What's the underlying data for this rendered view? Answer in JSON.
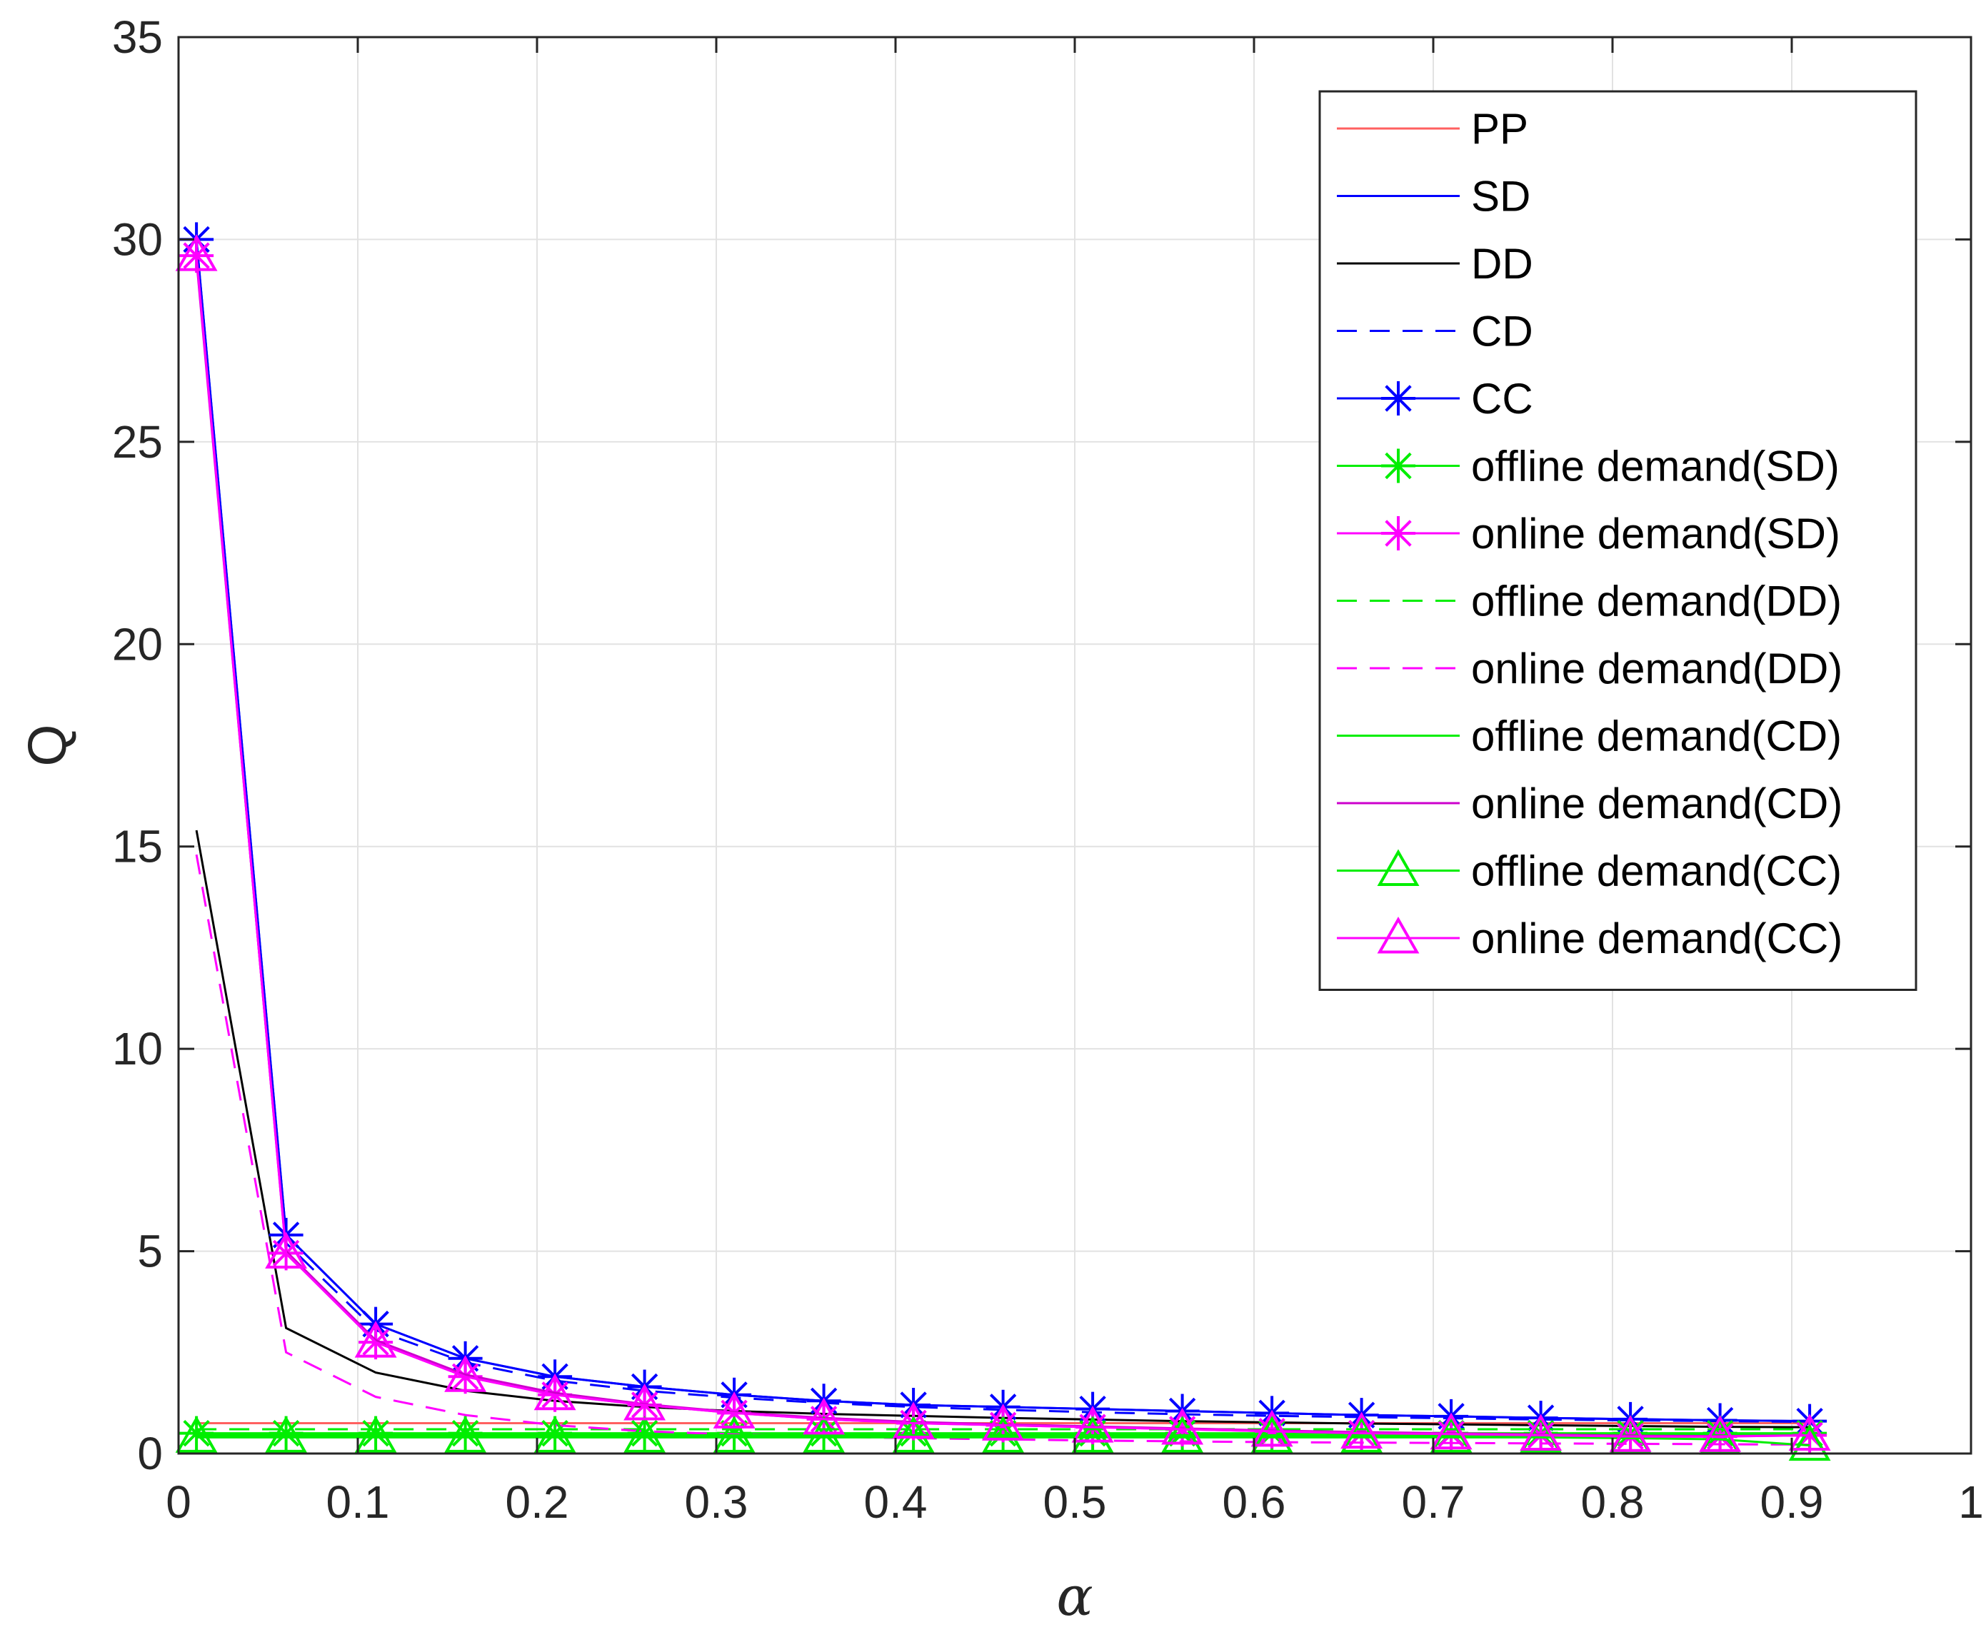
{
  "chart_data": {
    "type": "line",
    "title": "",
    "xlabel": "α",
    "ylabel": "Q",
    "xlim": [
      0,
      1
    ],
    "ylim": [
      0,
      35
    ],
    "xticks": [
      0,
      0.1,
      0.2,
      0.3,
      0.4,
      0.5,
      0.6,
      0.7,
      0.8,
      0.9,
      1
    ],
    "xtick_labels": [
      "0",
      "0.1",
      "0.2",
      "0.3",
      "0.4",
      "0.5",
      "0.6",
      "0.7",
      "0.8",
      "0.9",
      "1"
    ],
    "yticks": [
      0,
      5,
      10,
      15,
      20,
      25,
      30,
      35
    ],
    "ytick_labels": [
      "0",
      "5",
      "10",
      "15",
      "20",
      "25",
      "30",
      "35"
    ],
    "grid": true,
    "legend_position": "top-right",
    "x": [
      0.01,
      0.06,
      0.11,
      0.16,
      0.21,
      0.26,
      0.31,
      0.36,
      0.41,
      0.46,
      0.51,
      0.56,
      0.61,
      0.66,
      0.71,
      0.76,
      0.81,
      0.86,
      0.91
    ],
    "series": [
      {
        "name": "PP",
        "color": "#ff6060",
        "dash": "solid",
        "marker": "none",
        "values": [
          0.75,
          0.75,
          0.75,
          0.75,
          0.75,
          0.75,
          0.75,
          0.75,
          0.75,
          0.75,
          0.75,
          0.75,
          0.75,
          0.75,
          0.75,
          0.75,
          0.75,
          0.75,
          0.75
        ]
      },
      {
        "name": "SD",
        "color": "#0000ff",
        "dash": "solid",
        "marker": "none",
        "values": [
          30.0,
          5.4,
          3.2,
          2.35,
          1.9,
          1.65,
          1.45,
          1.3,
          1.2,
          1.15,
          1.1,
          1.05,
          1.0,
          0.95,
          0.92,
          0.88,
          0.85,
          0.82,
          0.8
        ]
      },
      {
        "name": "DD",
        "color": "#000000",
        "dash": "solid",
        "marker": "none",
        "values": [
          15.4,
          3.1,
          2.0,
          1.55,
          1.3,
          1.15,
          1.05,
          0.98,
          0.93,
          0.88,
          0.84,
          0.8,
          0.77,
          0.74,
          0.72,
          0.7,
          0.68,
          0.66,
          0.65
        ]
      },
      {
        "name": "CD",
        "color": "#0000ff",
        "dash": "dash",
        "marker": "none",
        "values": [
          29.8,
          5.2,
          3.05,
          2.25,
          1.8,
          1.55,
          1.38,
          1.25,
          1.15,
          1.08,
          1.02,
          0.97,
          0.93,
          0.9,
          0.87,
          0.84,
          0.82,
          0.8,
          0.78
        ]
      },
      {
        "name": "CC",
        "color": "#0000ff",
        "dash": "solid",
        "marker": "asterisk",
        "values": [
          30.0,
          5.4,
          3.2,
          2.35,
          1.9,
          1.65,
          1.45,
          1.3,
          1.2,
          1.15,
          1.1,
          1.05,
          1.0,
          0.95,
          0.92,
          0.88,
          0.85,
          0.82,
          0.8
        ]
      },
      {
        "name": "offline demand(SD)",
        "color": "#00ee00",
        "dash": "solid",
        "marker": "asterisk",
        "values": [
          0.5,
          0.5,
          0.5,
          0.5,
          0.5,
          0.5,
          0.5,
          0.5,
          0.5,
          0.5,
          0.5,
          0.5,
          0.5,
          0.5,
          0.5,
          0.5,
          0.5,
          0.5,
          0.5
        ]
      },
      {
        "name": "online demand(SD)",
        "color": "#ff00ff",
        "dash": "solid",
        "marker": "asterisk",
        "values": [
          29.6,
          4.95,
          2.75,
          1.9,
          1.45,
          1.2,
          1.0,
          0.85,
          0.75,
          0.7,
          0.65,
          0.6,
          0.55,
          0.5,
          0.48,
          0.45,
          0.42,
          0.42,
          0.45
        ]
      },
      {
        "name": "offline demand(DD)",
        "color": "#00ee00",
        "dash": "dash",
        "marker": "none",
        "values": [
          0.6,
          0.6,
          0.6,
          0.6,
          0.6,
          0.6,
          0.6,
          0.6,
          0.6,
          0.6,
          0.6,
          0.6,
          0.6,
          0.6,
          0.6,
          0.6,
          0.6,
          0.6,
          0.6
        ]
      },
      {
        "name": "online demand(DD)",
        "color": "#ff00ff",
        "dash": "dash",
        "marker": "none",
        "values": [
          14.8,
          2.5,
          1.4,
          0.95,
          0.7,
          0.55,
          0.47,
          0.42,
          0.38,
          0.35,
          0.32,
          0.3,
          0.28,
          0.27,
          0.26,
          0.25,
          0.24,
          0.23,
          0.22
        ]
      },
      {
        "name": "offline demand(CD)",
        "color": "#00ee00",
        "dash": "solid",
        "marker": "none",
        "values": [
          0.45,
          0.45,
          0.45,
          0.45,
          0.45,
          0.45,
          0.45,
          0.45,
          0.45,
          0.45,
          0.45,
          0.45,
          0.45,
          0.45,
          0.45,
          0.45,
          0.45,
          0.45,
          0.45
        ]
      },
      {
        "name": "online demand(CD)",
        "color": "#cc00cc",
        "dash": "solid",
        "marker": "none",
        "values": [
          29.5,
          5.0,
          2.8,
          1.95,
          1.5,
          1.22,
          1.02,
          0.88,
          0.78,
          0.72,
          0.67,
          0.62,
          0.57,
          0.53,
          0.5,
          0.47,
          0.44,
          0.43,
          0.45
        ]
      },
      {
        "name": "offline demand(CC)",
        "color": "#00ee00",
        "dash": "solid",
        "marker": "triangle",
        "values": [
          0.4,
          0.4,
          0.4,
          0.4,
          0.4,
          0.4,
          0.4,
          0.4,
          0.4,
          0.4,
          0.4,
          0.4,
          0.4,
          0.4,
          0.4,
          0.4,
          0.38,
          0.35,
          0.2
        ]
      },
      {
        "name": "online demand(CC)",
        "color": "#ff00ff",
        "dash": "solid",
        "marker": "triangle",
        "values": [
          29.6,
          4.95,
          2.75,
          1.9,
          1.45,
          1.2,
          1.0,
          0.85,
          0.75,
          0.7,
          0.65,
          0.6,
          0.55,
          0.5,
          0.48,
          0.45,
          0.42,
          0.42,
          0.45
        ]
      }
    ]
  }
}
